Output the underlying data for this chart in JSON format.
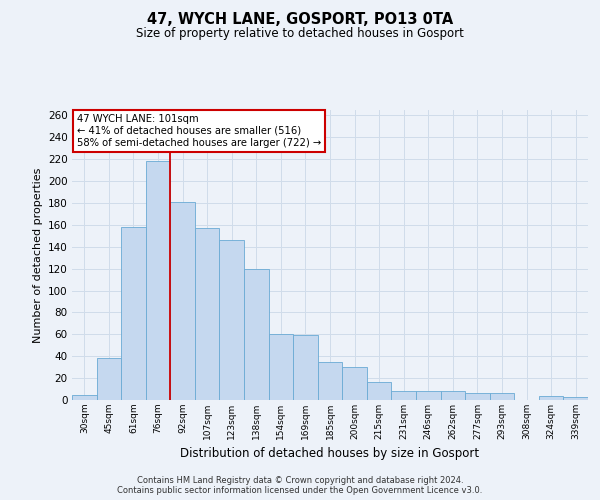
{
  "title": "47, WYCH LANE, GOSPORT, PO13 0TA",
  "subtitle": "Size of property relative to detached houses in Gosport",
  "xlabel": "Distribution of detached houses by size in Gosport",
  "ylabel": "Number of detached properties",
  "categories": [
    "30sqm",
    "45sqm",
    "61sqm",
    "76sqm",
    "92sqm",
    "107sqm",
    "123sqm",
    "138sqm",
    "154sqm",
    "169sqm",
    "185sqm",
    "200sqm",
    "215sqm",
    "231sqm",
    "246sqm",
    "262sqm",
    "277sqm",
    "293sqm",
    "308sqm",
    "324sqm",
    "339sqm"
  ],
  "values": [
    5,
    38,
    158,
    218,
    181,
    157,
    146,
    120,
    60,
    59,
    35,
    30,
    16,
    8,
    8,
    8,
    6,
    6,
    0,
    4,
    3
  ],
  "bar_color": "#c5d8ef",
  "bar_edge_color": "#6aaad4",
  "grid_color": "#d0dcea",
  "bg_color": "#edf2f9",
  "ref_line_color": "#cc0000",
  "annotation_text": "47 WYCH LANE: 101sqm\n← 41% of detached houses are smaller (516)\n58% of semi-detached houses are larger (722) →",
  "annotation_box_color": "#ffffff",
  "annotation_box_edge": "#cc0000",
  "footer1": "Contains HM Land Registry data © Crown copyright and database right 2024.",
  "footer2": "Contains public sector information licensed under the Open Government Licence v3.0.",
  "ylim": [
    0,
    265
  ],
  "yticks": [
    0,
    20,
    40,
    60,
    80,
    100,
    120,
    140,
    160,
    180,
    200,
    220,
    240,
    260
  ]
}
